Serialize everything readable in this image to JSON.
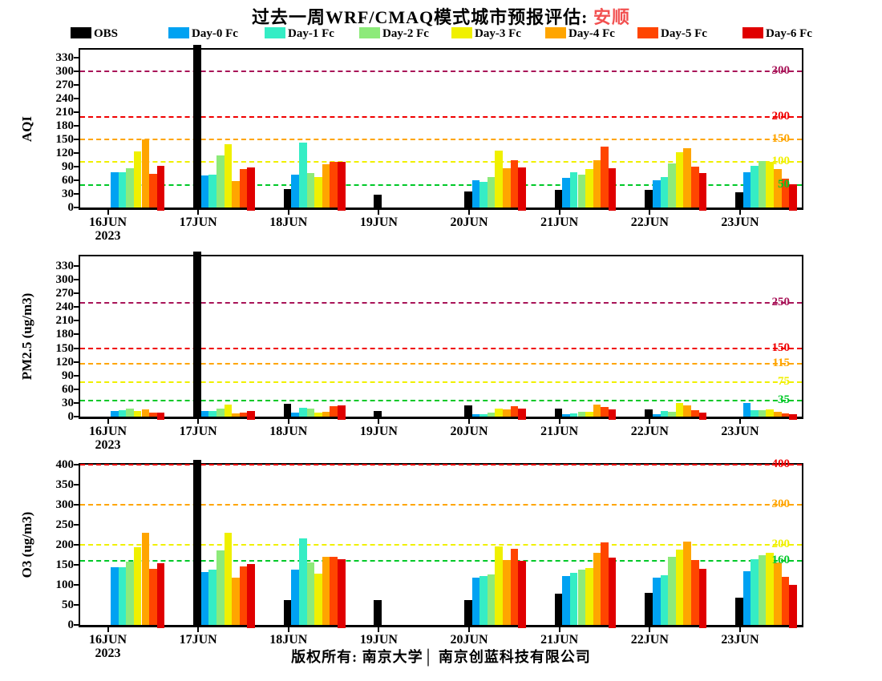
{
  "title": {
    "prefix": "过去一周WRF/CMAQ模式城市预报评估: ",
    "city": "安顺",
    "city_color": "#f25050"
  },
  "footer": "版权所有: 南京大学│ 南京创蓝科技有限公司",
  "legend": [
    {
      "label": "OBS",
      "color": "#000000"
    },
    {
      "label": "Day-0 Fc",
      "color": "#00a2f2"
    },
    {
      "label": "Day-1 Fc",
      "color": "#35edc5"
    },
    {
      "label": "Day-2 Fc",
      "color": "#8dea7a"
    },
    {
      "label": "Day-3 Fc",
      "color": "#f0f000"
    },
    {
      "label": "Day-4 Fc",
      "color": "#ffa500"
    },
    {
      "label": "Day-5 Fc",
      "color": "#ff4500"
    },
    {
      "label": "Day-6 Fc",
      "color": "#e00000"
    }
  ],
  "chart_data": [
    {
      "type": "bar",
      "panel": "AQI",
      "ylabel": "AQI",
      "xlabel": "",
      "ylim": [
        0,
        348
      ],
      "yticks": [
        0,
        30,
        60,
        90,
        120,
        150,
        180,
        210,
        240,
        270,
        300,
        330
      ],
      "categories": [
        "16JUN",
        "17JUN",
        "18JUN",
        "19JUN",
        "20JUN",
        "21JUN",
        "22JUN",
        "23JUN"
      ],
      "x_year_label": "2023",
      "legend_position": "top",
      "offscale_note": "OBS bar on 17JUN exceeds axis max and is clipped; 999 is an off-scale sentinel",
      "series": [
        {
          "name": "OBS",
          "color": "#000000",
          "values": [
            null,
            999,
            40,
            29,
            36,
            39,
            39,
            34
          ]
        },
        {
          "name": "Day-0 Fc",
          "color": "#00a2f2",
          "values": [
            77,
            70,
            72,
            null,
            60,
            66,
            60,
            77
          ]
        },
        {
          "name": "Day-1 Fc",
          "color": "#35edc5",
          "values": [
            78,
            72,
            143,
            null,
            57,
            77,
            67,
            92
          ]
        },
        {
          "name": "Day-2 Fc",
          "color": "#8dea7a",
          "values": [
            87,
            115,
            76,
            null,
            68,
            73,
            97,
            102
          ]
        },
        {
          "name": "Day-3 Fc",
          "color": "#f0f000",
          "values": [
            124,
            139,
            68,
            null,
            126,
            85,
            122,
            101
          ]
        },
        {
          "name": "Day-4 Fc",
          "color": "#ffa500",
          "values": [
            151,
            58,
            96,
            null,
            86,
            104,
            130,
            84
          ]
        },
        {
          "name": "Day-5 Fc",
          "color": "#ff4500",
          "values": [
            75,
            85,
            101,
            null,
            104,
            135,
            90,
            63
          ]
        },
        {
          "name": "Day-6 Fc",
          "color": "#e00000",
          "values": [
            91,
            88,
            100,
            null,
            89,
            87,
            76,
            51
          ]
        }
      ],
      "thresholds": [
        {
          "value": 50,
          "color": "#00c828",
          "label": "50"
        },
        {
          "value": 100,
          "color": "#f0f000",
          "label": "100"
        },
        {
          "value": 150,
          "color": "#ffa500",
          "label": "150"
        },
        {
          "value": 200,
          "color": "#f00000",
          "label": "200"
        },
        {
          "value": 300,
          "color": "#a81458",
          "label": "300"
        }
      ]
    },
    {
      "type": "bar",
      "panel": "PM2.5",
      "ylabel": "PM2.5 (ug/m3)",
      "xlabel": "",
      "ylim": [
        0,
        351
      ],
      "yticks": [
        0,
        30,
        60,
        90,
        120,
        150,
        180,
        210,
        240,
        270,
        300,
        330
      ],
      "categories": [
        "16JUN",
        "17JUN",
        "18JUN",
        "19JUN",
        "20JUN",
        "21JUN",
        "22JUN",
        "23JUN"
      ],
      "x_year_label": "2023",
      "legend_position": "top",
      "offscale_note": "OBS bar on 17JUN exceeds axis max and is clipped; 999 is an off-scale sentinel",
      "series": [
        {
          "name": "OBS",
          "color": "#000000",
          "values": [
            null,
            999,
            28,
            13,
            25,
            17,
            15,
            null
          ]
        },
        {
          "name": "Day-0 Fc",
          "color": "#00a2f2",
          "values": [
            12,
            12,
            9,
            null,
            5,
            5,
            5,
            29
          ]
        },
        {
          "name": "Day-1 Fc",
          "color": "#35edc5",
          "values": [
            14,
            13,
            19,
            null,
            6,
            7,
            12,
            14
          ]
        },
        {
          "name": "Day-2 Fc",
          "color": "#8dea7a",
          "values": [
            18,
            17,
            17,
            null,
            9,
            10,
            10,
            14
          ]
        },
        {
          "name": "Day-3 Fc",
          "color": "#f0f000",
          "values": [
            13,
            26,
            8,
            null,
            17,
            10,
            29,
            16
          ]
        },
        {
          "name": "Day-4 Fc",
          "color": "#ffa500",
          "values": [
            16,
            7,
            11,
            null,
            16,
            27,
            24,
            10
          ]
        },
        {
          "name": "Day-5 Fc",
          "color": "#ff4500",
          "values": [
            8,
            9,
            22,
            null,
            22,
            21,
            14,
            7
          ]
        },
        {
          "name": "Day-6 Fc",
          "color": "#e00000",
          "values": [
            9,
            12,
            25,
            null,
            17,
            16,
            8,
            5
          ]
        }
      ],
      "thresholds": [
        {
          "value": 35,
          "color": "#00c828",
          "label": "35"
        },
        {
          "value": 75,
          "color": "#f0f000",
          "label": "75"
        },
        {
          "value": 115,
          "color": "#ffa500",
          "label": "115"
        },
        {
          "value": 150,
          "color": "#f00000",
          "label": "150"
        },
        {
          "value": 250,
          "color": "#a81458",
          "label": "250"
        }
      ]
    },
    {
      "type": "bar",
      "panel": "O3",
      "ylabel": "O3 (ug/m3)",
      "xlabel": "",
      "ylim": [
        0,
        400
      ],
      "yticks": [
        0,
        50,
        100,
        150,
        200,
        250,
        300,
        350,
        400
      ],
      "categories": [
        "16JUN",
        "17JUN",
        "18JUN",
        "19JUN",
        "20JUN",
        "21JUN",
        "22JUN",
        "23JUN"
      ],
      "x_year_label": "2023",
      "legend_position": "top",
      "offscale_note": "OBS bar on 17JUN exceeds axis max and is clipped; 999 is an off-scale sentinel",
      "series": [
        {
          "name": "OBS",
          "color": "#000000",
          "values": [
            null,
            999,
            62,
            62,
            63,
            78,
            80,
            68
          ]
        },
        {
          "name": "Day-0 Fc",
          "color": "#00a2f2",
          "values": [
            144,
            133,
            138,
            null,
            118,
            122,
            118,
            134
          ]
        },
        {
          "name": "Day-1 Fc",
          "color": "#35edc5",
          "values": [
            144,
            138,
            216,
            null,
            122,
            130,
            125,
            164
          ]
        },
        {
          "name": "Day-2 Fc",
          "color": "#8dea7a",
          "values": [
            159,
            186,
            157,
            null,
            127,
            139,
            170,
            175
          ]
        },
        {
          "name": "Day-3 Fc",
          "color": "#f0f000",
          "values": [
            195,
            230,
            128,
            null,
            197,
            142,
            189,
            180
          ]
        },
        {
          "name": "Day-4 Fc",
          "color": "#ffa500",
          "values": [
            230,
            118,
            170,
            null,
            163,
            180,
            209,
            157
          ]
        },
        {
          "name": "Day-5 Fc",
          "color": "#ff4500",
          "values": [
            140,
            146,
            171,
            null,
            190,
            207,
            162,
            120
          ]
        },
        {
          "name": "Day-6 Fc",
          "color": "#e00000",
          "values": [
            154,
            152,
            165,
            null,
            160,
            168,
            140,
            100
          ]
        }
      ],
      "thresholds": [
        {
          "value": 160,
          "color": "#00c828",
          "label": "160"
        },
        {
          "value": 200,
          "color": "#f0f000",
          "label": "200"
        },
        {
          "value": 300,
          "color": "#ffa500",
          "label": "300"
        },
        {
          "value": 400,
          "color": "#f00000",
          "label": "400"
        }
      ]
    }
  ]
}
